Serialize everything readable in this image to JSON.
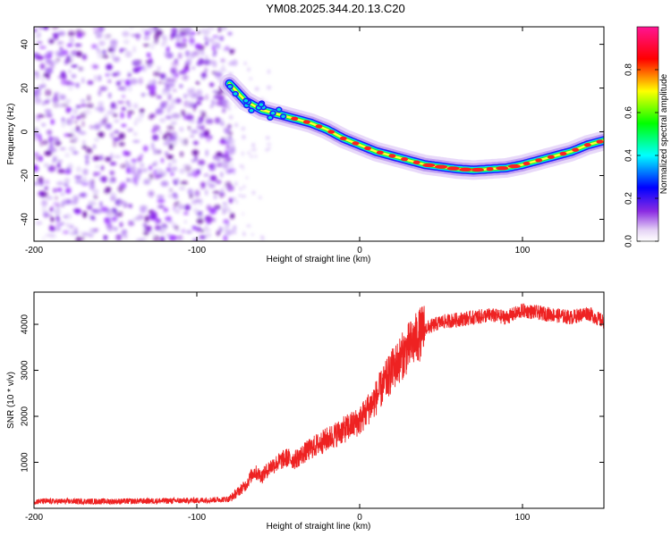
{
  "title": "YM08.2025.344.20.13.C20",
  "chart_data": [
    {
      "type": "heatmap",
      "name": "spectrogram",
      "xlabel": "Height of straight line (km)",
      "ylabel": "Frequency (Hz)",
      "xlim": [
        -200,
        150
      ],
      "ylim": [
        -50,
        48
      ],
      "xticks": [
        -200,
        -100,
        0,
        100
      ],
      "yticks": [
        -40,
        -20,
        0,
        20,
        40
      ],
      "noise_region_x": [
        -200,
        -80
      ],
      "ridge": {
        "x": [
          -80,
          -75,
          -70,
          -60,
          -50,
          -40,
          -30,
          -20,
          -10,
          0,
          10,
          20,
          30,
          40,
          50,
          60,
          70,
          80,
          90,
          100,
          110,
          120,
          130,
          140,
          150
        ],
        "y": [
          22,
          18,
          14,
          10,
          8,
          6,
          4,
          1,
          -3,
          -6,
          -9,
          -11,
          -13,
          -15,
          -16,
          -17,
          -17.5,
          -17,
          -16.5,
          -15,
          -13,
          -11,
          -9,
          -6,
          -4
        ]
      },
      "colorbar": {
        "label": "Normalized spectral amplitude",
        "ticks": [
          "0.0",
          "0.2",
          "0.4",
          "0.6",
          "0.8"
        ],
        "range": [
          0,
          1
        ]
      }
    },
    {
      "type": "line",
      "name": "snr",
      "xlabel": "Height of straight line (km)",
      "ylabel": "SNR (10 * v/v)",
      "xlim": [
        -200,
        150
      ],
      "ylim": [
        0,
        4700
      ],
      "xticks": [
        -200,
        -100,
        0,
        100
      ],
      "yticks": [
        1000,
        2000,
        3000,
        4000
      ],
      "series": [
        {
          "name": "SNR",
          "color": "#ee2222",
          "x": [
            -200,
            -150,
            -100,
            -80,
            -70,
            -65,
            -60,
            -55,
            -50,
            -45,
            -40,
            -30,
            -20,
            -10,
            0,
            10,
            20,
            30,
            40,
            50,
            60,
            70,
            80,
            90,
            100,
            110,
            120,
            130,
            140,
            150
          ],
          "y": [
            150,
            150,
            170,
            200,
            500,
            800,
            700,
            900,
            1000,
            1100,
            1050,
            1300,
            1500,
            1700,
            1900,
            2400,
            3000,
            3500,
            3900,
            4050,
            4100,
            4150,
            4200,
            4150,
            4300,
            4250,
            4200,
            4150,
            4250,
            4050
          ]
        }
      ]
    }
  ]
}
